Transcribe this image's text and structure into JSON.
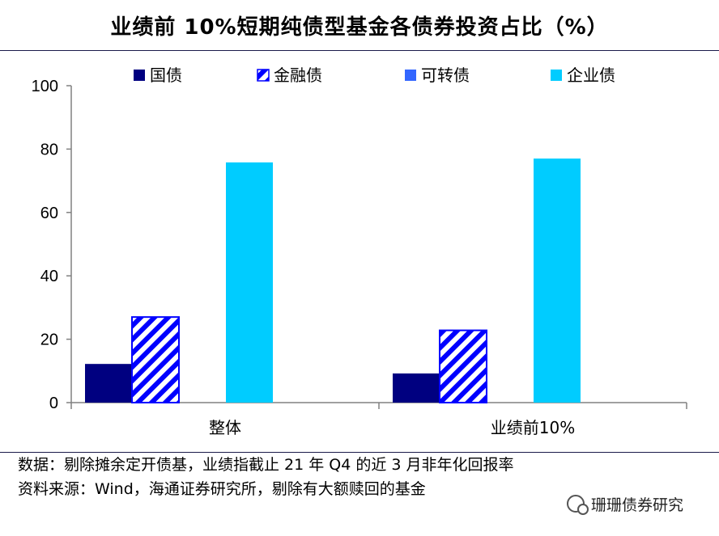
{
  "title": "业绩前 10%短期纯债型基金各债券投资占比（%）",
  "chart_data": {
    "type": "bar",
    "categories": [
      "整体",
      "业绩前10%"
    ],
    "series": [
      {
        "name": "国债",
        "values": [
          12.2,
          9.2
        ],
        "color": "#000080",
        "pattern": "solid"
      },
      {
        "name": "金融债",
        "values": [
          27,
          22.8
        ],
        "color": "#0000ff",
        "pattern": "diagonal-stripes"
      },
      {
        "name": "可转债",
        "values": [
          0,
          0
        ],
        "color": "#3366ff",
        "pattern": "solid"
      },
      {
        "name": "企业债",
        "values": [
          75.8,
          77
        ],
        "color": "#00ccff",
        "pattern": "solid"
      }
    ],
    "yticks": [
      "0",
      "20",
      "40",
      "60",
      "80",
      "100"
    ],
    "ylim": [
      0,
      100
    ],
    "legend_position": "top",
    "grid": false
  },
  "notes": {
    "line1": "数据：剔除摊余定开债基，业绩指截止 21 年 Q4 的近 3 月非年化回报率",
    "line2": "资料来源：Wind，海通证券研究所，剔除有大额赎回的基金"
  },
  "watermark": "珊珊债券研究"
}
